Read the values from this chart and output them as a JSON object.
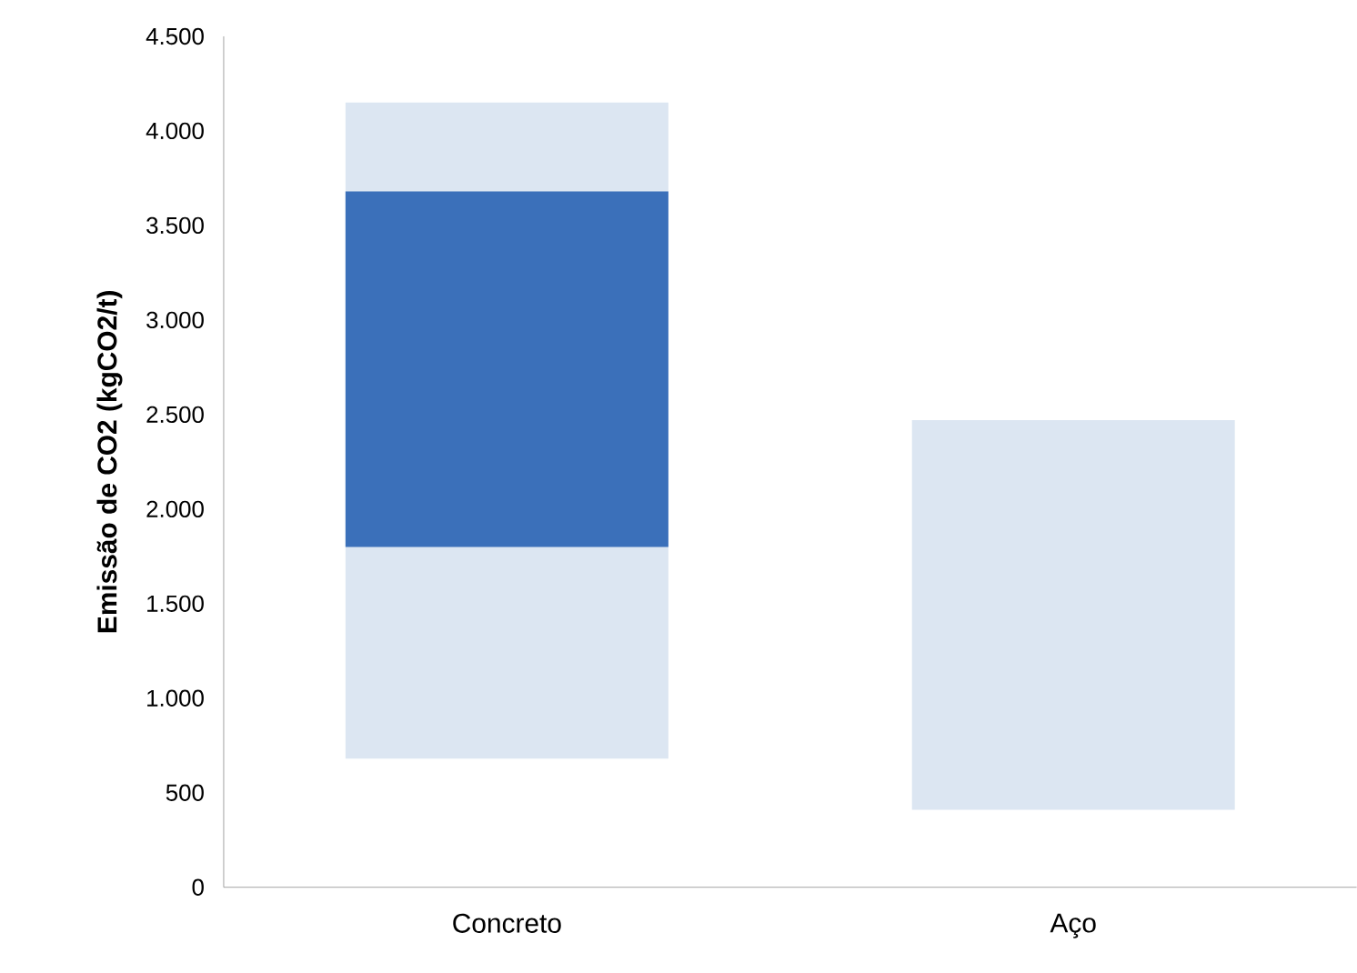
{
  "chart_data": {
    "type": "bar",
    "ylabel": "Emissão de CO2 (kgCO2/t)",
    "categories": [
      "Concreto",
      "Aço"
    ],
    "series": [
      {
        "color": "#dce6f2",
        "base": [
          680,
          410
        ],
        "values": [
          3470,
          2060
        ]
      },
      {
        "color": "#3b70ba",
        "base": [
          1800,
          null
        ],
        "values": [
          1880,
          null
        ]
      }
    ],
    "ylim": [
      0,
      4500
    ],
    "yticks": [
      0,
      500,
      {
        "value": 1000,
        "label": "1.000"
      },
      {
        "value": 1500,
        "label": "1.500"
      },
      {
        "value": 2000,
        "label": "2.000"
      },
      {
        "value": 2500,
        "label": "2.500"
      },
      {
        "value": 3000,
        "label": "3.000"
      },
      {
        "value": 3500,
        "label": "3.500"
      },
      {
        "value": 4000,
        "label": "4.000"
      },
      {
        "value": 4500,
        "label": "4.500"
      }
    ],
    "grid": false
  }
}
